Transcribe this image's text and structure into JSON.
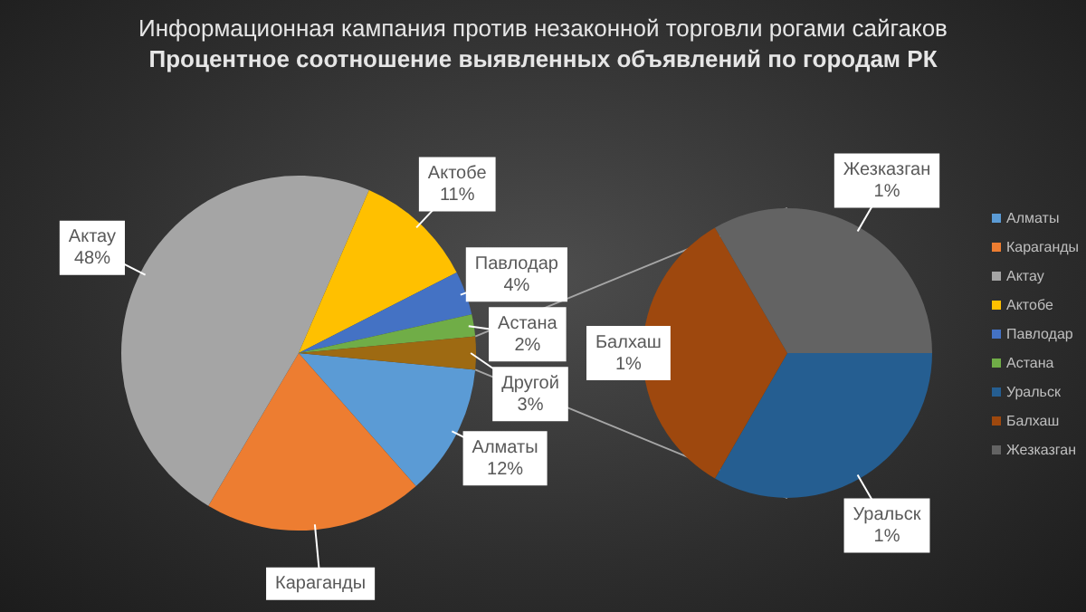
{
  "chart_data": [
    {
      "type": "pie",
      "title": "Информационная кампания против незаконной торговли рогами сайгаков",
      "subtitle": "Процентное  соотношение  выявленных  объявлений  по городам  РК",
      "categories": [
        "Алматы",
        "Караганды",
        "Актау",
        "Актобе",
        "Павлодар",
        "Астана",
        "Другой"
      ],
      "values": [
        12,
        20,
        48,
        11,
        4,
        2,
        3
      ],
      "colors": [
        "#5b9bd5",
        "#ed7d31",
        "#a5a5a5",
        "#ffc000",
        "#4472c4",
        "#70ad47",
        "#9e6a12"
      ],
      "value_labels": [
        "12%",
        null,
        "48%",
        "11%",
        "4%",
        "2%",
        "3%"
      ],
      "legend": "right"
    },
    {
      "type": "pie",
      "categories": [
        "Уральск",
        "Балхаш",
        "Жезказган"
      ],
      "values": [
        1,
        1,
        1
      ],
      "colors": [
        "#255e91",
        "#9e480e",
        "#636363"
      ],
      "value_labels": [
        "1%",
        "1%",
        "1%"
      ],
      "legend": "right"
    }
  ]
}
